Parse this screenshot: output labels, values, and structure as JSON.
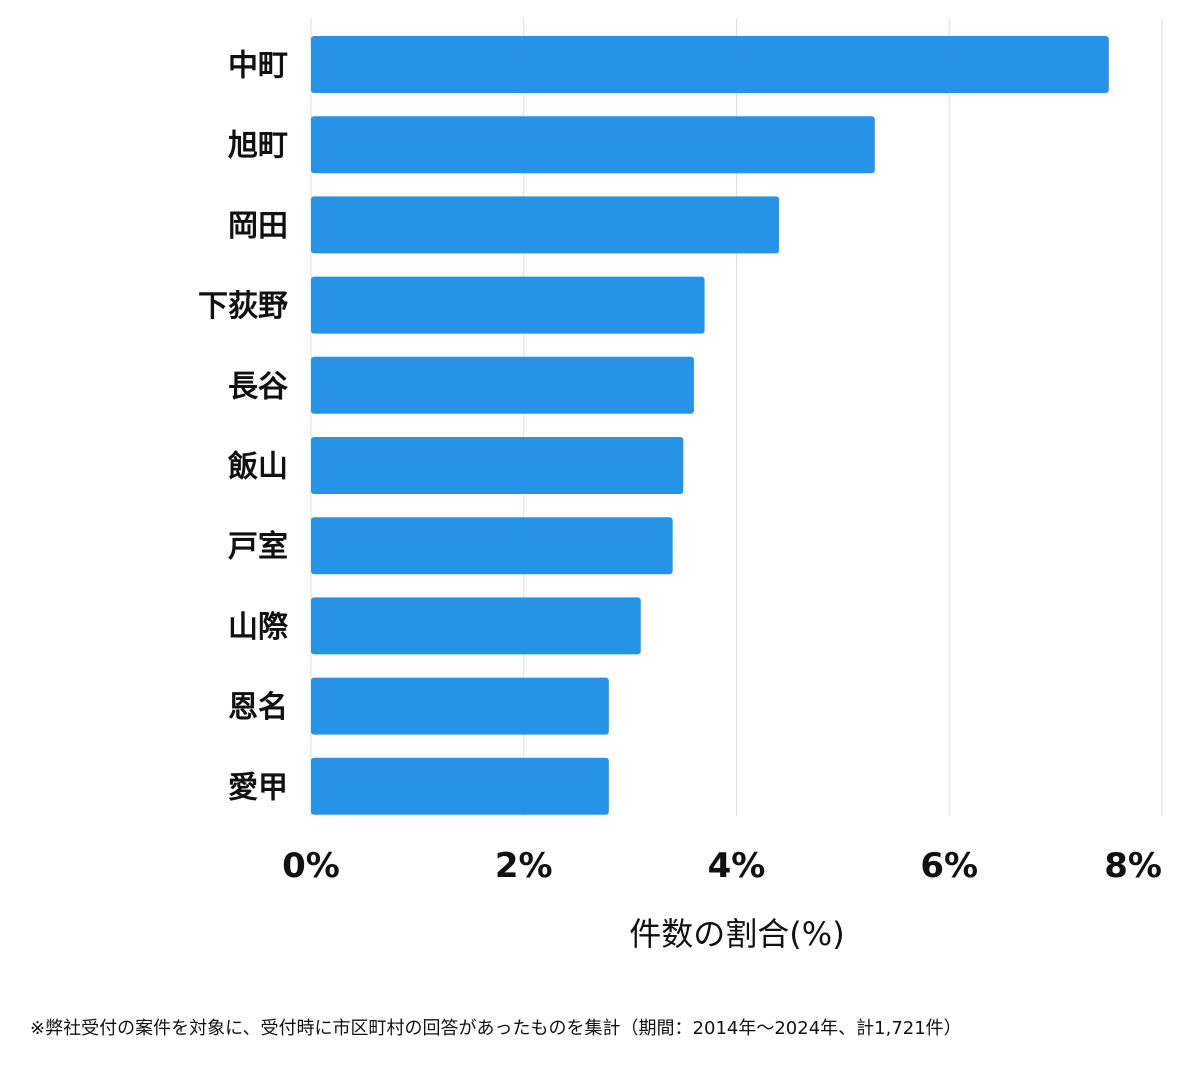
{
  "chart_data": {
    "type": "bar",
    "orientation": "horizontal",
    "categories": [
      "中町",
      "旭町",
      "岡田",
      "下荻野",
      "長谷",
      "飯山",
      "戸室",
      "山際",
      "恩名",
      "愛甲"
    ],
    "values": [
      7.5,
      5.3,
      4.4,
      3.7,
      3.6,
      3.5,
      3.4,
      3.1,
      2.8,
      2.8
    ],
    "xlim": [
      0,
      8
    ],
    "xticks": [
      0,
      2,
      4,
      6,
      8
    ],
    "tick_labels": [
      "0%",
      "2%",
      "4%",
      "6%",
      "8%"
    ],
    "xlabel": "件数の割合(%)",
    "ylabel": "",
    "title": "",
    "grid": true,
    "bar_color": "#2793e6",
    "grid_color": "#dddddd"
  },
  "footnote": "※弊社受付の案件を対象に、受付時に市区町村の回答があったものを集計（期間：2014年～2024年、計1,721件）"
}
